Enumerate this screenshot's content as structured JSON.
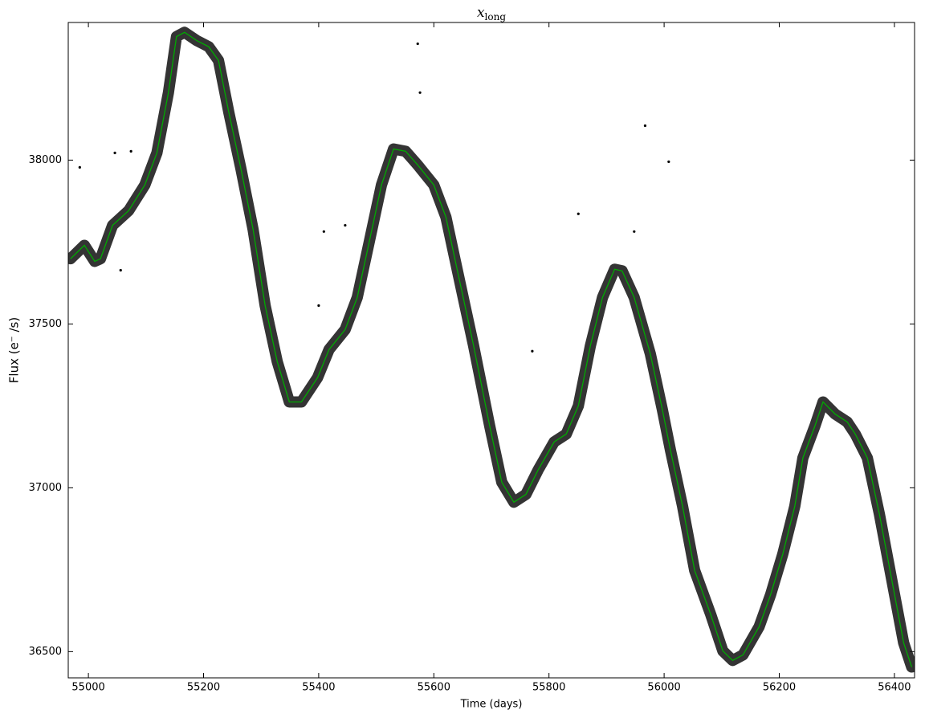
{
  "chart_data": {
    "type": "line",
    "title": "x",
    "title_subscript": "long",
    "xlabel": "Time (days)",
    "ylabel": "Flux (e⁻ /s)",
    "xlim": [
      54965,
      56435
    ],
    "ylim": [
      36420,
      38420
    ],
    "xticks": [
      55000,
      55200,
      55400,
      55600,
      55800,
      56000,
      56200,
      56400
    ],
    "yticks": [
      36500,
      37000,
      37500,
      38000
    ],
    "grid": false,
    "series": [
      {
        "type": "line",
        "color": "#00aa00",
        "x": [
          54969,
          54993,
          55011,
          55021,
          55042,
          55070,
          55098,
          55119,
          55139,
          55153,
          55167,
          55188,
          55209,
          55226,
          55244,
          55265,
          55286,
          55307,
          55328,
          55349,
          55370,
          55398,
          55418,
          55446,
          55467,
          55488,
          55509,
          55530,
          55551,
          55572,
          55600,
          55621,
          55642,
          55669,
          55697,
          55718,
          55739,
          55760,
          55781,
          55809,
          55830,
          55851,
          55872,
          55893,
          55914,
          55927,
          55948,
          55976,
          55997,
          56011,
          56032,
          56053,
          56081,
          56102,
          56119,
          56137,
          56165,
          56185,
          56206,
          56227,
          56241,
          56262,
          56276,
          56297,
          56318,
          56332,
          56353,
          56374,
          56395,
          56416,
          56430
        ],
        "values": [
          37699,
          37740,
          37691,
          37699,
          37801,
          37846,
          37924,
          38022,
          38206,
          38377,
          38390,
          38365,
          38346,
          38304,
          38145,
          37973,
          37789,
          37556,
          37385,
          37262,
          37262,
          37336,
          37422,
          37483,
          37581,
          37752,
          37924,
          38034,
          38027,
          37985,
          37924,
          37826,
          37654,
          37434,
          37189,
          37017,
          36956,
          36980,
          37054,
          37140,
          37164,
          37250,
          37434,
          37581,
          37667,
          37662,
          37581,
          37409,
          37238,
          37115,
          36944,
          36748,
          36613,
          36502,
          36473,
          36490,
          36576,
          36674,
          36797,
          36944,
          37091,
          37189,
          37262,
          37225,
          37201,
          37164,
          37091,
          36919,
          36723,
          36527,
          36453
        ]
      },
      {
        "type": "scatter",
        "color": "#000000",
        "x": [
          54985,
          55046,
          55074,
          55409,
          55446,
          55576,
          55572,
          55851,
          55967,
          56008,
          55771,
          55400,
          55056,
          55948
        ],
        "values": [
          37978,
          38022,
          38027,
          37782,
          37801,
          38206,
          38355,
          37836,
          38105,
          37995,
          37417,
          37556,
          37664,
          37782
        ]
      }
    ]
  }
}
